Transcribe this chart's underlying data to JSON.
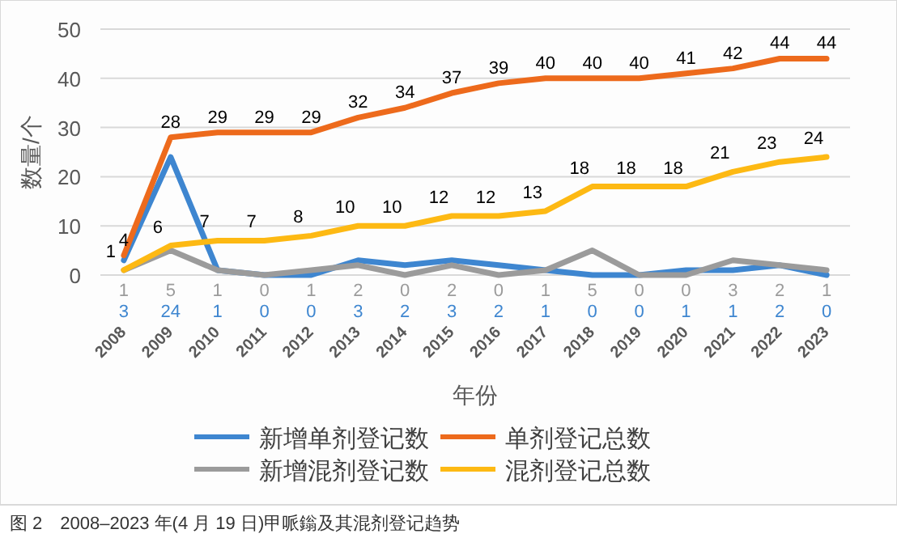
{
  "chart_data": {
    "type": "line",
    "categories": [
      "2008",
      "2009",
      "2010",
      "2011",
      "2012",
      "2013",
      "2014",
      "2015",
      "2016",
      "2017",
      "2018",
      "2019",
      "2020",
      "2021",
      "2022",
      "2023"
    ],
    "series": [
      {
        "name": "新增单剂登记数",
        "color": "#3e86d0",
        "values": [
          3,
          24,
          1,
          0,
          0,
          3,
          2,
          3,
          2,
          1,
          0,
          0,
          1,
          1,
          2,
          0
        ]
      },
      {
        "name": "单剂登记总数",
        "color": "#ed6a1c",
        "values": [
          4,
          28,
          29,
          29,
          29,
          32,
          34,
          37,
          39,
          40,
          40,
          40,
          41,
          42,
          44,
          44
        ]
      },
      {
        "name": "新增混剂登记数",
        "color": "#9b9b9b",
        "values": [
          1,
          5,
          1,
          0,
          1,
          2,
          0,
          2,
          0,
          1,
          5,
          0,
          0,
          3,
          2,
          1
        ]
      },
      {
        "name": "混剂登记总数",
        "color": "#fdb913",
        "values": [
          1,
          6,
          7,
          7,
          8,
          10,
          10,
          12,
          12,
          13,
          18,
          18,
          18,
          21,
          23,
          24
        ]
      }
    ],
    "xlabel": "年份",
    "ylabel": "数量/个",
    "ylim": [
      0,
      50
    ],
    "yticks": [
      0,
      10,
      20,
      30,
      40,
      50
    ],
    "grid": "y",
    "legend": "bottom",
    "data_labels": true,
    "marker": "none",
    "annotations": [
      "图 2　2008–2023 年(4 月 19 日)甲哌鎓及其混剂登记趋势"
    ]
  }
}
